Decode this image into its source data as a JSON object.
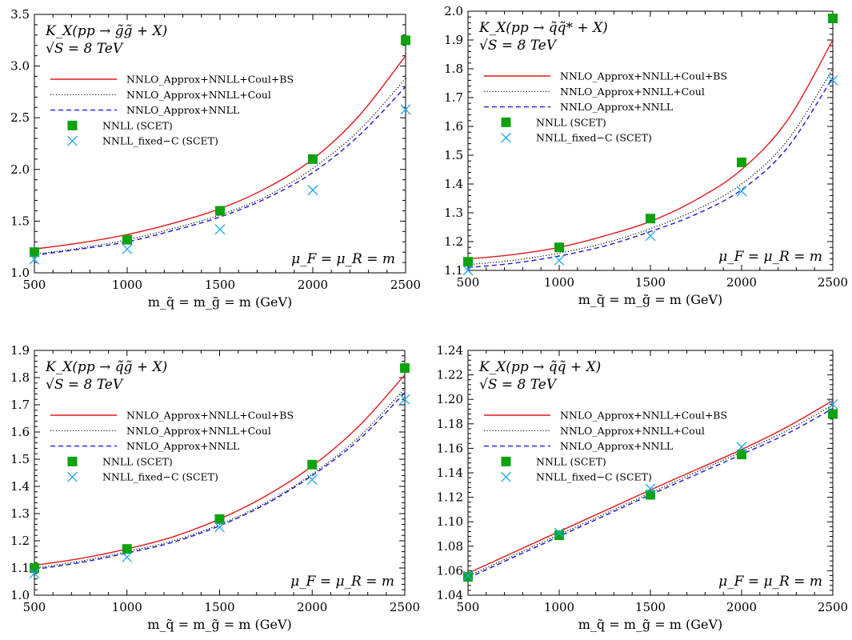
{
  "chart_data": [
    {
      "type": "line",
      "title_lines": [
        "K_X(pp → g̃g̃ + X)",
        "√S = 8 TeV"
      ],
      "scale_note": "μ_F = μ_R = m",
      "xlabel": "m_q̃ = m_g̃ = m (GeV)",
      "ylabel": "",
      "xlim": [
        500,
        2500
      ],
      "ylim": [
        1.0,
        3.5
      ],
      "xticks": [
        500,
        1000,
        1500,
        2000,
        2500
      ],
      "yticks": [
        1.0,
        1.5,
        2.0,
        2.5,
        3.0,
        3.5
      ],
      "ytick_labels": [
        "1.0",
        "1.5",
        "2.0",
        "2.5",
        "3.0",
        "3.5"
      ],
      "grid": false,
      "legend_position": "top-left",
      "x": [
        500,
        750,
        1000,
        1250,
        1500,
        1750,
        2000,
        2250,
        2500
      ],
      "series": [
        {
          "name": "NNLO_Approx+NNLL+Coul+BS",
          "style": "solid",
          "color": "#e0191b",
          "values": [
            1.23,
            1.29,
            1.37,
            1.48,
            1.62,
            1.82,
            2.1,
            2.52,
            3.1
          ]
        },
        {
          "name": "NNLO_Approx+NNLL+Coul",
          "style": "dotted",
          "color": "#000000",
          "values": [
            1.18,
            1.24,
            1.32,
            1.43,
            1.56,
            1.74,
            2.01,
            2.38,
            2.88
          ]
        },
        {
          "name": "NNLO_Approx+NNLL",
          "style": "dashed",
          "color": "#1a1adf",
          "values": [
            1.17,
            1.23,
            1.3,
            1.41,
            1.54,
            1.72,
            1.97,
            2.33,
            2.8
          ]
        },
        {
          "name": "NNLL (SCET)",
          "style": "square",
          "color": "#0ea30e",
          "x": [
            500,
            1000,
            1500,
            2000,
            2500
          ],
          "values": [
            1.2,
            1.32,
            1.6,
            2.1,
            3.25
          ]
        },
        {
          "name": "NNLL_fixed−C (SCET)",
          "style": "cross",
          "color": "#1ea8f0",
          "x": [
            500,
            1000,
            1500,
            2000,
            2500
          ],
          "values": [
            1.13,
            1.23,
            1.42,
            1.8,
            2.58
          ]
        }
      ]
    },
    {
      "type": "line",
      "title_lines": [
        "K_X(pp → q̃q̃* + X)",
        "√S = 8 TeV"
      ],
      "scale_note": "μ_F = μ_R = m",
      "xlabel": "m_q̃ = m_g̃ = m (GeV)",
      "ylabel": "",
      "xlim": [
        500,
        2500
      ],
      "ylim": [
        1.1,
        2.0
      ],
      "xticks": [
        500,
        1000,
        1500,
        2000,
        2500
      ],
      "yticks": [
        1.1,
        1.2,
        1.3,
        1.4,
        1.5,
        1.6,
        1.7,
        1.8,
        1.9,
        2.0
      ],
      "ytick_labels": [
        "1.1",
        "1.2",
        "1.3",
        "1.4",
        "1.5",
        "1.6",
        "1.7",
        "1.8",
        "1.9",
        "2.0"
      ],
      "grid": false,
      "legend_position": "top-left",
      "x": [
        500,
        750,
        1000,
        1250,
        1500,
        1750,
        2000,
        2250,
        2500
      ],
      "series": [
        {
          "name": "NNLO_Approx+NNLL+Coul+BS",
          "style": "solid",
          "color": "#e0191b",
          "values": [
            1.14,
            1.155,
            1.18,
            1.22,
            1.27,
            1.345,
            1.45,
            1.62,
            1.9
          ]
        },
        {
          "name": "NNLO_Approx+NNLL+Coul",
          "style": "dotted",
          "color": "#000000",
          "values": [
            1.12,
            1.135,
            1.16,
            1.195,
            1.245,
            1.31,
            1.4,
            1.55,
            1.8
          ]
        },
        {
          "name": "NNLO_Approx+NNLL",
          "style": "dashed",
          "color": "#1a1adf",
          "values": [
            1.11,
            1.125,
            1.15,
            1.185,
            1.235,
            1.295,
            1.38,
            1.525,
            1.77
          ]
        },
        {
          "name": "NNLL (SCET)",
          "style": "square",
          "color": "#0ea30e",
          "x": [
            500,
            1000,
            1500,
            2000,
            2500
          ],
          "values": [
            1.13,
            1.18,
            1.28,
            1.475,
            1.975
          ]
        },
        {
          "name": "NNLL_fixed−C (SCET)",
          "style": "cross",
          "color": "#1ea8f0",
          "x": [
            500,
            1000,
            1500,
            2000,
            2500
          ],
          "values": [
            1.1,
            1.135,
            1.22,
            1.375,
            1.76
          ]
        }
      ]
    },
    {
      "type": "line",
      "title_lines": [
        "K_X(pp → q̃g̃ + X)",
        "√S = 8 TeV"
      ],
      "scale_note": "μ_F = μ_R = m",
      "xlabel": "m_q̃ = m_g̃ = m (GeV)",
      "ylabel": "",
      "xlim": [
        500,
        2500
      ],
      "ylim": [
        1.0,
        1.9
      ],
      "xticks": [
        500,
        1000,
        1500,
        2000,
        2500
      ],
      "yticks": [
        1.0,
        1.1,
        1.2,
        1.3,
        1.4,
        1.5,
        1.6,
        1.7,
        1.8,
        1.9
      ],
      "ytick_labels": [
        "1.0",
        "1.1",
        "1.2",
        "1.3",
        "1.4",
        "1.5",
        "1.6",
        "1.7",
        "1.8",
        "1.9"
      ],
      "grid": false,
      "legend_position": "top-left",
      "x": [
        500,
        750,
        1000,
        1250,
        1500,
        1750,
        2000,
        2250,
        2500
      ],
      "series": [
        {
          "name": "NNLO_Approx+NNLL+Coul+BS",
          "style": "solid",
          "color": "#e0191b",
          "values": [
            1.11,
            1.135,
            1.17,
            1.215,
            1.28,
            1.365,
            1.475,
            1.62,
            1.81
          ]
        },
        {
          "name": "NNLO_Approx+NNLL+Coul",
          "style": "dotted",
          "color": "#000000",
          "values": [
            1.1,
            1.125,
            1.16,
            1.2,
            1.26,
            1.34,
            1.445,
            1.58,
            1.76
          ]
        },
        {
          "name": "NNLO_Approx+NNLL",
          "style": "dashed",
          "color": "#1a1adf",
          "values": [
            1.095,
            1.12,
            1.155,
            1.195,
            1.255,
            1.335,
            1.44,
            1.57,
            1.745
          ]
        },
        {
          "name": "NNLL (SCET)",
          "style": "square",
          "color": "#0ea30e",
          "x": [
            500,
            1000,
            1500,
            2000,
            2500
          ],
          "values": [
            1.1,
            1.17,
            1.28,
            1.48,
            1.835
          ]
        },
        {
          "name": "NNLL_fixed−C (SCET)",
          "style": "cross",
          "color": "#1ea8f0",
          "x": [
            500,
            1000,
            1500,
            2000,
            2500
          ],
          "values": [
            1.08,
            1.14,
            1.25,
            1.425,
            1.72
          ]
        }
      ]
    },
    {
      "type": "line",
      "title_lines": [
        "K_X(pp → q̃q̃ + X)",
        "√S = 8 TeV"
      ],
      "scale_note": "μ_F = μ_R = m",
      "xlabel": "m_q̃ = m_g̃ = m (GeV)",
      "ylabel": "",
      "xlim": [
        500,
        2500
      ],
      "ylim": [
        1.04,
        1.24
      ],
      "xticks": [
        500,
        1000,
        1500,
        2000,
        2500
      ],
      "yticks": [
        1.04,
        1.06,
        1.08,
        1.1,
        1.12,
        1.14,
        1.16,
        1.18,
        1.2,
        1.22,
        1.24
      ],
      "ytick_labels": [
        "1.04",
        "1.06",
        "1.08",
        "1.10",
        "1.12",
        "1.14",
        "1.16",
        "1.18",
        "1.20",
        "1.22",
        "1.24"
      ],
      "grid": false,
      "legend_position": "top-left",
      "x": [
        500,
        750,
        1000,
        1250,
        1500,
        1750,
        2000,
        2250,
        2500
      ],
      "series": [
        {
          "name": "NNLO_Approx+NNLL+Coul+BS",
          "style": "solid",
          "color": "#e0191b",
          "values": [
            1.058,
            1.075,
            1.092,
            1.109,
            1.126,
            1.1425,
            1.159,
            1.1775,
            1.199
          ]
        },
        {
          "name": "NNLO_Approx+NNLL+Coul",
          "style": "dotted",
          "color": "#000000",
          "values": [
            1.0555,
            1.0725,
            1.0895,
            1.1065,
            1.1235,
            1.1405,
            1.157,
            1.1745,
            1.1955
          ]
        },
        {
          "name": "NNLO_Approx+NNLL",
          "style": "dashed",
          "color": "#1a1adf",
          "values": [
            1.054,
            1.071,
            1.088,
            1.105,
            1.122,
            1.1385,
            1.155,
            1.172,
            1.1925
          ]
        },
        {
          "name": "NNLL (SCET)",
          "style": "square",
          "color": "#0ea30e",
          "x": [
            500,
            1000,
            1500,
            2000,
            2500
          ],
          "values": [
            1.055,
            1.089,
            1.122,
            1.155,
            1.188
          ]
        },
        {
          "name": "NNLL_fixed−C (SCET)",
          "style": "cross",
          "color": "#1ea8f0",
          "x": [
            500,
            1000,
            1500,
            2000,
            2500
          ],
          "values": [
            1.056,
            1.091,
            1.127,
            1.161,
            1.196
          ]
        }
      ]
    }
  ]
}
